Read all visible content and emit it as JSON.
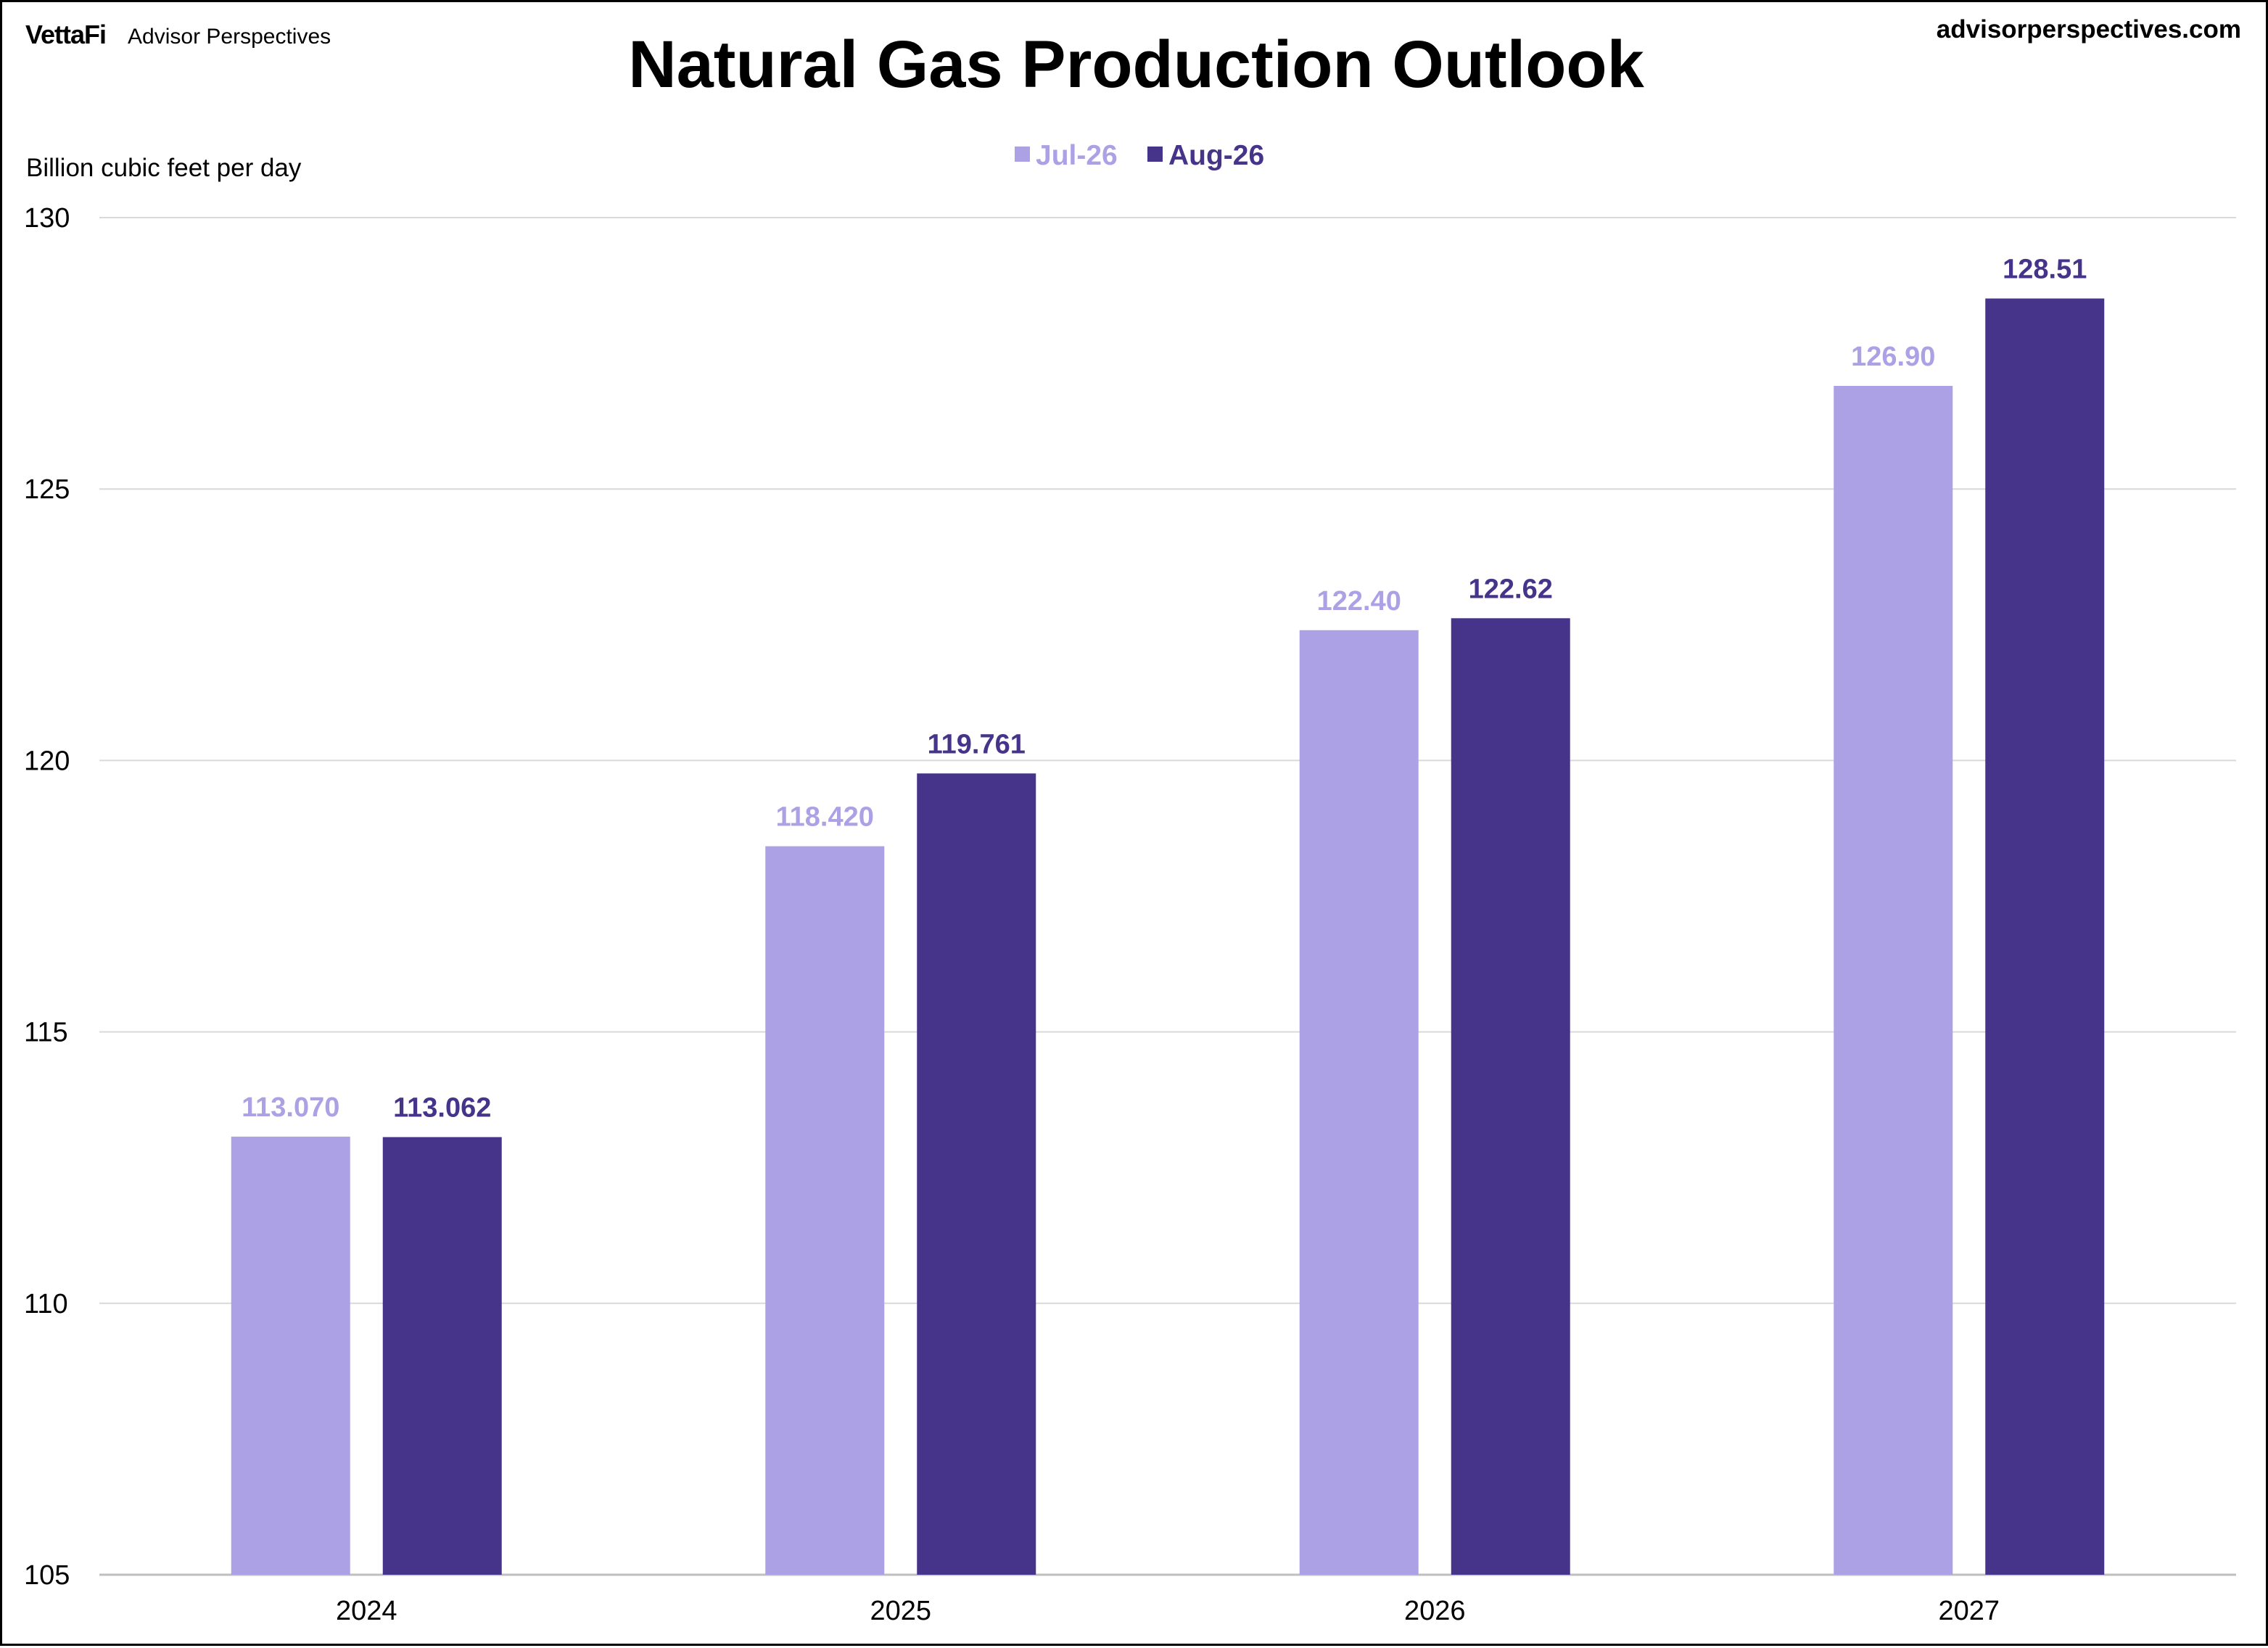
{
  "header": {
    "brand_logo": "VettaFi",
    "brand_name": "Advisor Perspectives",
    "website": "advisorperspectives.com"
  },
  "colors": {
    "jul": "#ada1e6",
    "aug": "#46348a",
    "grid": "#d9d9d9",
    "axis": "#bfbfbf"
  },
  "chart_data": {
    "type": "bar",
    "title": "Natural Gas Production Outlook",
    "ylabel": "Billion  cubic feet per day",
    "xlabel": "",
    "categories": [
      "2024",
      "2025",
      "2026",
      "2027"
    ],
    "ylim": [
      105,
      130
    ],
    "yticks": [
      105,
      110,
      115,
      120,
      125,
      130
    ],
    "grid": true,
    "legend_position": "top-center",
    "series": [
      {
        "name": "Jul-26",
        "color": "#ada1e6",
        "values": [
          113.07,
          118.42,
          122.4,
          126.9
        ],
        "labels": [
          "113.070",
          "118.420",
          "122.40",
          "126.90"
        ]
      },
      {
        "name": "Aug-26",
        "color": "#46348a",
        "values": [
          113.062,
          119.761,
          122.62,
          128.51
        ],
        "labels": [
          "113.062",
          "119.761",
          "122.62",
          "128.51"
        ]
      }
    ]
  }
}
